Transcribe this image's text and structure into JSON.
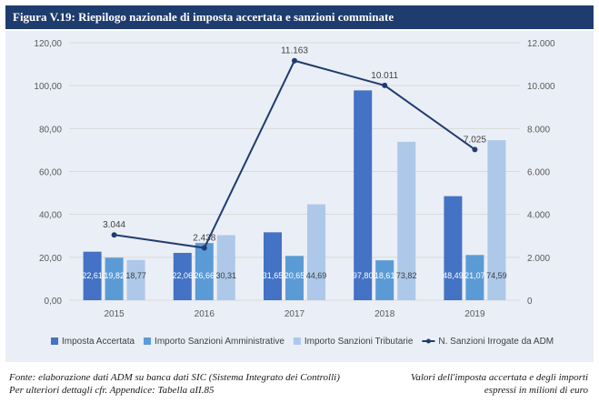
{
  "title": "Figura V.19: Riepilogo nazionale di imposta accertata e sanzioni comminate",
  "chart_data": {
    "type": "bar",
    "categories": [
      "2015",
      "2016",
      "2017",
      "2018",
      "2019"
    ],
    "y_left": {
      "lim": [
        0,
        120
      ],
      "ticks": [
        "0,00",
        "20,00",
        "40,00",
        "60,00",
        "80,00",
        "100,00",
        "120,00"
      ]
    },
    "y_right": {
      "lim": [
        0,
        12000
      ],
      "ticks": [
        "0",
        "2.000",
        "4.000",
        "6.000",
        "8.000",
        "10.000",
        "12.000"
      ]
    },
    "series": [
      {
        "name": "Imposta Accertata",
        "type": "bar",
        "axis": "left",
        "color": "#4472c4",
        "values": [
          22.61,
          22.06,
          31.65,
          97.8,
          48.49
        ],
        "labels": [
          "22,61",
          "22,06",
          "31,65",
          "97,80",
          "48,49"
        ]
      },
      {
        "name": "Importo Sanzioni Amministrative",
        "type": "bar",
        "axis": "left",
        "color": "#5b9bd5",
        "values": [
          19.82,
          26.66,
          20.65,
          18.61,
          21.07
        ],
        "labels": [
          "19,82",
          "26,66",
          "20,65",
          "18,61",
          "21,07"
        ]
      },
      {
        "name": "Importo Sanzioni Tributarie",
        "type": "bar",
        "axis": "left",
        "color": "#adc8e8",
        "values": [
          18.77,
          30.31,
          44.69,
          73.82,
          74.59
        ],
        "labels": [
          "18,77",
          "30,31",
          "44,69",
          "73,82",
          "74,59"
        ]
      },
      {
        "name": "N. Sanzioni Irrogate da ADM",
        "type": "line",
        "axis": "right",
        "color": "#1f3c6e",
        "values": [
          3044,
          2438,
          11163,
          10011,
          7025
        ],
        "labels": [
          "3.044",
          "2.438",
          "11.163",
          "10.011",
          "7.025"
        ]
      }
    ],
    "legend_position": "bottom",
    "grid": true
  },
  "footer": {
    "source_line1": "Fonte: elaborazione dati ADM su banca dati SIC (Sistema Integrato dei Controlli)",
    "source_line2": "Per ulteriori dettagli cfr. Appendice: Tabella aII.85",
    "note_line1": "Valori dell'imposta accertata e degli importi",
    "note_line2": "espressi in milioni di euro"
  }
}
